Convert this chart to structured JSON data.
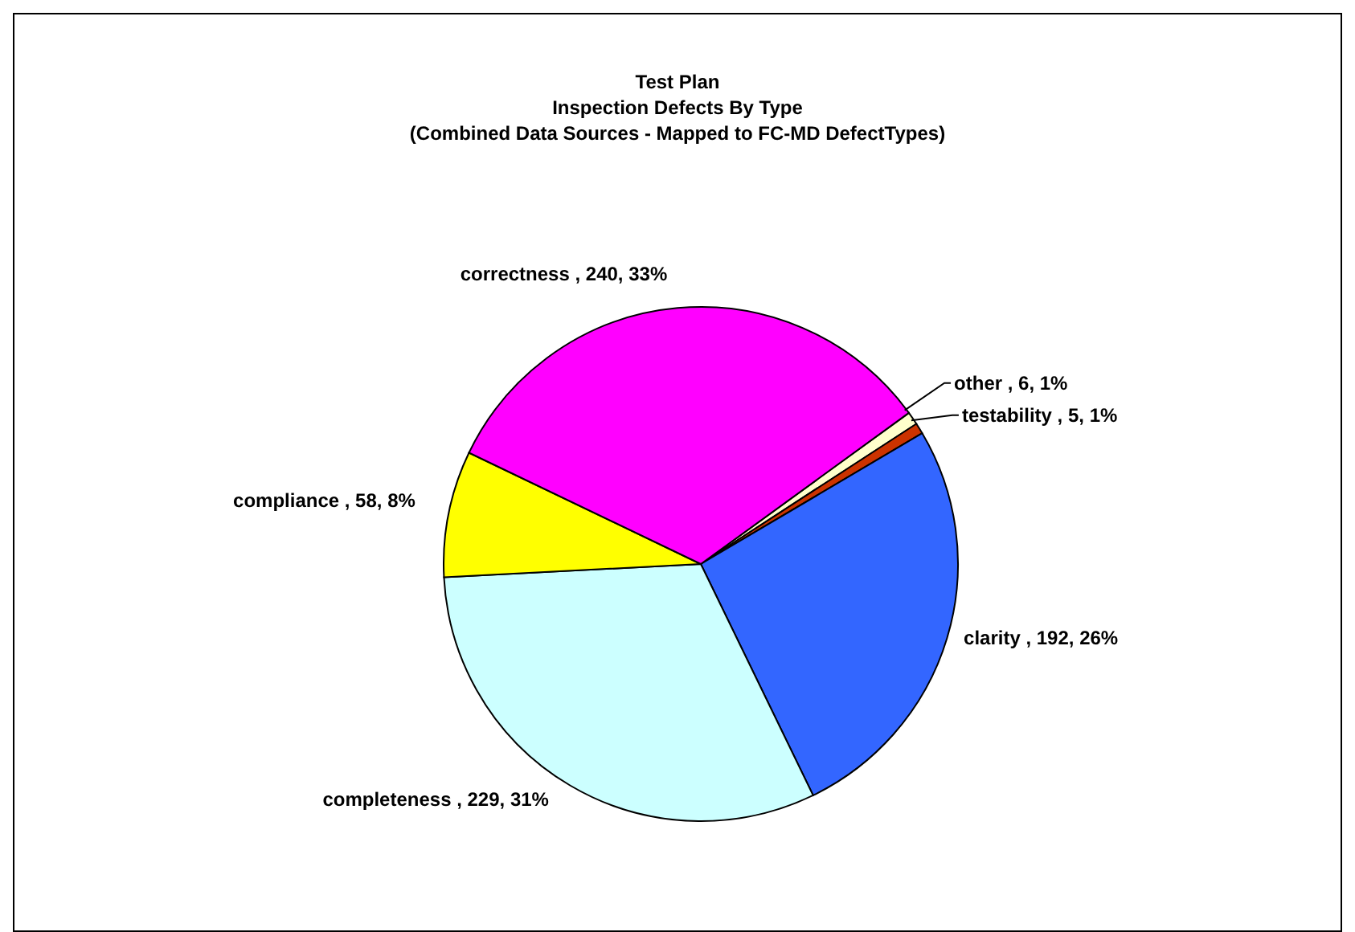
{
  "chart_data": {
    "type": "pie",
    "title": "Test Plan\nInspection Defects By Type\n(Combined Data Sources - Mapped to FC-MD DefectTypes)",
    "categories": [
      "other",
      "testability",
      "clarity",
      "completeness",
      "compliance",
      "correctness"
    ],
    "values": [
      6,
      5,
      192,
      229,
      58,
      240
    ],
    "colors": [
      "#ffffcc",
      "#cc3300",
      "#3366ff",
      "#ccffff",
      "#ffff00",
      "#ff00ff"
    ],
    "value_labels": [
      "6, 1%",
      "5, 1%",
      "192, 26%",
      "229, 31%",
      "58, 8%",
      "240, 33%"
    ]
  }
}
